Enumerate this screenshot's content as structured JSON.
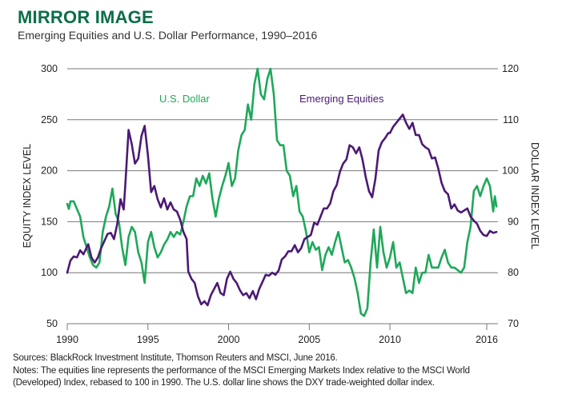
{
  "header": {
    "title": "MIRROR IMAGE",
    "subtitle": "Emerging Equities and U.S. Dollar Performance, 1990–2016"
  },
  "footer": {
    "sources": "Sources: BlackRock Investment Institute, Thomson Reuters and MSCI, June 2016.",
    "notes_line1": "Notes: The equities line represents the performance of the MSCI Emerging Markets Index relative to the MSCI World",
    "notes_line2": "(Developed) Index, rebased to 100 in 1990. The U.S. dollar line shows the DXY trade-weighted dollar index."
  },
  "colors": {
    "title": "#0b6e47",
    "equities": "#4b1a74",
    "dollar": "#1fa85a",
    "grid": "#777777"
  },
  "chart_data": {
    "type": "line",
    "title": "MIRROR IMAGE",
    "subtitle": "Emerging Equities and U.S. Dollar Performance, 1990–2016",
    "xlabel": "",
    "ylabel_left": "EQUITY INDEX LEVEL",
    "ylabel_right": "DOLLAR INDEX LEVEL",
    "xlim": [
      1990,
      2016.6
    ],
    "ylim_left": [
      50,
      300
    ],
    "ylim_right": [
      70,
      120
    ],
    "x_ticks": [
      1990,
      1995,
      2000,
      2005,
      2010,
      2016
    ],
    "x_tick_labels": [
      "1990",
      "1995",
      "2000",
      "2005",
      "2010",
      "2016"
    ],
    "y_ticks_left": [
      300,
      250,
      200,
      150,
      100,
      50
    ],
    "y_tick_labels_left": [
      "300",
      "250",
      "200",
      "150",
      "100",
      "50"
    ],
    "y_ticks_right": [
      120,
      110,
      100,
      90,
      80,
      70
    ],
    "y_tick_labels_right": [
      "120",
      "110",
      "100",
      "90",
      "80",
      "70"
    ],
    "grid": true,
    "legend": "inline-top",
    "series": [
      {
        "name": "Emerging Equities",
        "axis": "left",
        "color": "#4b1a74",
        "label": "Emerging Equities",
        "points": [
          [
            1990.0,
            100
          ],
          [
            1990.2,
            112
          ],
          [
            1990.4,
            116
          ],
          [
            1990.6,
            115
          ],
          [
            1990.8,
            122
          ],
          [
            1991.0,
            118
          ],
          [
            1991.3,
            128
          ],
          [
            1991.5,
            115
          ],
          [
            1991.7,
            110
          ],
          [
            1991.9,
            115
          ],
          [
            1992.1,
            124
          ],
          [
            1992.3,
            131
          ],
          [
            1992.5,
            138
          ],
          [
            1992.7,
            139
          ],
          [
            1992.9,
            133
          ],
          [
            1993.1,
            148
          ],
          [
            1993.3,
            172
          ],
          [
            1993.5,
            162
          ],
          [
            1993.6,
            187
          ],
          [
            1993.8,
            240
          ],
          [
            1994.0,
            226
          ],
          [
            1994.2,
            207
          ],
          [
            1994.4,
            212
          ],
          [
            1994.6,
            234
          ],
          [
            1994.8,
            244
          ],
          [
            1995.0,
            215
          ],
          [
            1995.2,
            179
          ],
          [
            1995.4,
            185
          ],
          [
            1995.6,
            172
          ],
          [
            1995.8,
            164
          ],
          [
            1996.0,
            173
          ],
          [
            1996.2,
            162
          ],
          [
            1996.4,
            169
          ],
          [
            1996.6,
            162
          ],
          [
            1996.8,
            160
          ],
          [
            1997.0,
            152
          ],
          [
            1997.2,
            140
          ],
          [
            1997.4,
            133
          ],
          [
            1997.5,
            101
          ],
          [
            1997.7,
            94
          ],
          [
            1997.9,
            90
          ],
          [
            1998.1,
            77
          ],
          [
            1998.3,
            69
          ],
          [
            1998.5,
            72
          ],
          [
            1998.7,
            68
          ],
          [
            1998.9,
            78
          ],
          [
            1999.1,
            84
          ],
          [
            1999.3,
            90
          ],
          [
            1999.5,
            80
          ],
          [
            1999.7,
            78
          ],
          [
            1999.9,
            94
          ],
          [
            2000.1,
            101
          ],
          [
            2000.3,
            94
          ],
          [
            2000.5,
            90
          ],
          [
            2000.7,
            83
          ],
          [
            2000.9,
            78
          ],
          [
            2001.1,
            80
          ],
          [
            2001.3,
            75
          ],
          [
            2001.5,
            82
          ],
          [
            2001.7,
            74
          ],
          [
            2001.9,
            84
          ],
          [
            2002.1,
            91
          ],
          [
            2002.3,
            98
          ],
          [
            2002.5,
            97
          ],
          [
            2002.7,
            100
          ],
          [
            2002.9,
            98
          ],
          [
            2003.1,
            102
          ],
          [
            2003.3,
            113
          ],
          [
            2003.5,
            116
          ],
          [
            2003.7,
            121
          ],
          [
            2003.9,
            121
          ],
          [
            2004.1,
            127
          ],
          [
            2004.3,
            120
          ],
          [
            2004.5,
            124
          ],
          [
            2004.7,
            133
          ],
          [
            2004.9,
            135
          ],
          [
            2005.1,
            137
          ],
          [
            2005.3,
            149
          ],
          [
            2005.5,
            147
          ],
          [
            2005.7,
            155
          ],
          [
            2005.9,
            163
          ],
          [
            2006.1,
            163
          ],
          [
            2006.3,
            168
          ],
          [
            2006.5,
            180
          ],
          [
            2006.7,
            186
          ],
          [
            2006.9,
            199
          ],
          [
            2007.1,
            207
          ],
          [
            2007.3,
            211
          ],
          [
            2007.5,
            225
          ],
          [
            2007.7,
            223
          ],
          [
            2007.9,
            217
          ],
          [
            2008.1,
            223
          ],
          [
            2008.3,
            211
          ],
          [
            2008.5,
            194
          ],
          [
            2008.7,
            180
          ],
          [
            2008.9,
            174
          ],
          [
            2009.1,
            192
          ],
          [
            2009.3,
            220
          ],
          [
            2009.5,
            228
          ],
          [
            2009.7,
            232
          ],
          [
            2009.9,
            237
          ],
          [
            2010.0,
            237
          ],
          [
            2010.2,
            243
          ],
          [
            2010.4,
            247
          ],
          [
            2010.6,
            251
          ],
          [
            2010.8,
            255
          ],
          [
            2011.0,
            247
          ],
          [
            2011.2,
            241
          ],
          [
            2011.4,
            247
          ],
          [
            2011.6,
            235
          ],
          [
            2011.8,
            235
          ],
          [
            2012.0,
            226
          ],
          [
            2012.2,
            223
          ],
          [
            2012.4,
            221
          ],
          [
            2012.6,
            212
          ],
          [
            2012.8,
            213
          ],
          [
            2013.0,
            202
          ],
          [
            2013.2,
            188
          ],
          [
            2013.4,
            180
          ],
          [
            2013.6,
            177
          ],
          [
            2013.8,
            163
          ],
          [
            2014.0,
            167
          ],
          [
            2014.2,
            161
          ],
          [
            2014.4,
            159
          ],
          [
            2014.6,
            161
          ],
          [
            2014.8,
            163
          ],
          [
            2015.0,
            155
          ],
          [
            2015.2,
            151
          ],
          [
            2015.4,
            148
          ],
          [
            2015.6,
            141
          ],
          [
            2015.8,
            137
          ],
          [
            2016.0,
            136
          ],
          [
            2016.2,
            141
          ],
          [
            2016.4,
            139
          ],
          [
            2016.6,
            140
          ]
        ]
      },
      {
        "name": "U.S. Dollar",
        "axis": "right",
        "color": "#1fa85a",
        "label": "U.S. Dollar",
        "points": [
          [
            1990.0,
            93.5
          ],
          [
            1990.1,
            92.5
          ],
          [
            1990.2,
            94
          ],
          [
            1990.4,
            94
          ],
          [
            1990.6,
            92.5
          ],
          [
            1990.8,
            91
          ],
          [
            1991.0,
            87
          ],
          [
            1991.2,
            85
          ],
          [
            1991.4,
            83
          ],
          [
            1991.6,
            81.5
          ],
          [
            1991.8,
            81
          ],
          [
            1992.0,
            82
          ],
          [
            1992.2,
            88
          ],
          [
            1992.4,
            91
          ],
          [
            1992.6,
            93
          ],
          [
            1992.8,
            96.5
          ],
          [
            1993.0,
            91.5
          ],
          [
            1993.2,
            90
          ],
          [
            1993.4,
            85
          ],
          [
            1993.6,
            81.5
          ],
          [
            1993.8,
            87
          ],
          [
            1994.0,
            89
          ],
          [
            1994.2,
            88
          ],
          [
            1994.4,
            84
          ],
          [
            1994.6,
            82
          ],
          [
            1994.8,
            78
          ],
          [
            1995.0,
            86
          ],
          [
            1995.2,
            88
          ],
          [
            1995.4,
            85
          ],
          [
            1995.6,
            83
          ],
          [
            1995.8,
            84
          ],
          [
            1996.0,
            85.5
          ],
          [
            1996.2,
            86.5
          ],
          [
            1996.4,
            88
          ],
          [
            1996.6,
            87
          ],
          [
            1996.8,
            88
          ],
          [
            1997.0,
            87.5
          ],
          [
            1997.2,
            90
          ],
          [
            1997.4,
            93
          ],
          [
            1997.6,
            95
          ],
          [
            1997.8,
            95
          ],
          [
            1998.0,
            98.5
          ],
          [
            1998.2,
            97
          ],
          [
            1998.4,
            99
          ],
          [
            1998.6,
            97.5
          ],
          [
            1998.8,
            99.5
          ],
          [
            1999.0,
            94.5
          ],
          [
            1999.2,
            91
          ],
          [
            1999.4,
            94.5
          ],
          [
            1999.6,
            97
          ],
          [
            1999.8,
            99
          ],
          [
            2000.0,
            101.5
          ],
          [
            2000.2,
            97
          ],
          [
            2000.4,
            98.5
          ],
          [
            2000.6,
            104
          ],
          [
            2000.8,
            107
          ],
          [
            2001.0,
            108
          ],
          [
            2001.2,
            113
          ],
          [
            2001.4,
            110
          ],
          [
            2001.6,
            117
          ],
          [
            2001.8,
            120
          ],
          [
            2002.0,
            115
          ],
          [
            2002.2,
            114
          ],
          [
            2002.4,
            118
          ],
          [
            2002.6,
            120
          ],
          [
            2002.8,
            115
          ],
          [
            2003.0,
            106
          ],
          [
            2003.2,
            105
          ],
          [
            2003.4,
            105
          ],
          [
            2003.6,
            100
          ],
          [
            2003.8,
            99
          ],
          [
            2004.0,
            95
          ],
          [
            2004.2,
            97
          ],
          [
            2004.4,
            92
          ],
          [
            2004.6,
            91
          ],
          [
            2004.8,
            88
          ],
          [
            2005.0,
            84
          ],
          [
            2005.2,
            86
          ],
          [
            2005.4,
            84.5
          ],
          [
            2005.6,
            85
          ],
          [
            2005.8,
            80.5
          ],
          [
            2006.0,
            83.5
          ],
          [
            2006.2,
            85
          ],
          [
            2006.4,
            83.5
          ],
          [
            2006.6,
            86
          ],
          [
            2006.8,
            88
          ],
          [
            2007.0,
            85
          ],
          [
            2007.2,
            82
          ],
          [
            2007.4,
            82.5
          ],
          [
            2007.6,
            81
          ],
          [
            2007.8,
            79
          ],
          [
            2008.0,
            76
          ],
          [
            2008.2,
            72
          ],
          [
            2008.4,
            71.5
          ],
          [
            2008.6,
            73
          ],
          [
            2008.8,
            82
          ],
          [
            2009.0,
            88.5
          ],
          [
            2009.2,
            81
          ],
          [
            2009.4,
            89
          ],
          [
            2009.6,
            84
          ],
          [
            2009.8,
            81
          ],
          [
            2010.0,
            83
          ],
          [
            2010.2,
            86
          ],
          [
            2010.4,
            81
          ],
          [
            2010.6,
            82
          ],
          [
            2010.8,
            79
          ],
          [
            2011.0,
            76
          ],
          [
            2011.2,
            76.5
          ],
          [
            2011.4,
            76
          ],
          [
            2011.6,
            81
          ],
          [
            2011.8,
            78
          ],
          [
            2012.0,
            80
          ],
          [
            2012.2,
            80
          ],
          [
            2012.4,
            83.5
          ],
          [
            2012.6,
            81
          ],
          [
            2012.8,
            81
          ],
          [
            2013.0,
            81
          ],
          [
            2013.2,
            83
          ],
          [
            2013.4,
            84.5
          ],
          [
            2013.6,
            82
          ],
          [
            2013.8,
            81
          ],
          [
            2014.0,
            81
          ],
          [
            2014.2,
            80.5
          ],
          [
            2014.4,
            80
          ],
          [
            2014.6,
            81
          ],
          [
            2014.8,
            86
          ],
          [
            2015.0,
            89
          ],
          [
            2015.2,
            96
          ],
          [
            2015.4,
            97
          ],
          [
            2015.6,
            95
          ],
          [
            2015.8,
            97
          ],
          [
            2016.0,
            98.5
          ],
          [
            2016.2,
            97
          ],
          [
            2016.4,
            92
          ],
          [
            2016.5,
            95
          ],
          [
            2016.6,
            93
          ]
        ]
      }
    ]
  }
}
